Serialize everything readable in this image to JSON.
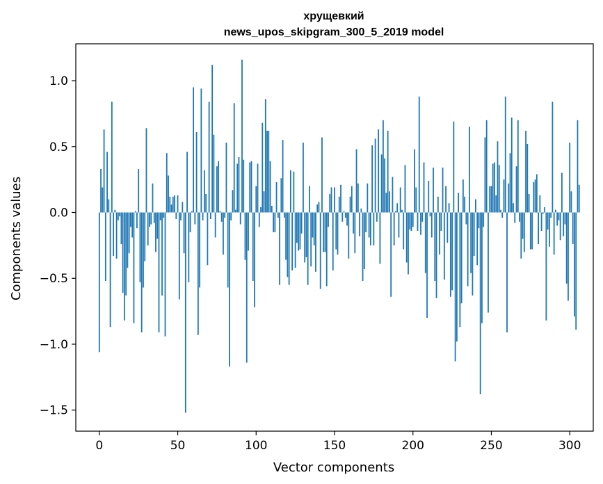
{
  "chart_data": {
    "type": "bar",
    "title_line1": "хрущевкий",
    "title_line2": "news_upos_skipgram_300_5_2019 model",
    "xlabel": "Vector components",
    "ylabel": "Components values",
    "xlim": [
      -15,
      315
    ],
    "ylim": [
      -1.66,
      1.28
    ],
    "xticks": [
      0,
      50,
      100,
      150,
      200,
      250,
      300
    ],
    "xtick_labels": [
      "0",
      "50",
      "100",
      "150",
      "200",
      "250",
      "300"
    ],
    "yticks": [
      1.0,
      0.5,
      0.0,
      -0.5,
      -1.0,
      -1.5
    ],
    "ytick_labels": [
      "1.0",
      "0.5",
      "0.0",
      "−0.5",
      "−1.0",
      "−1.5"
    ],
    "bar_color": "#1f77b4",
    "values": [
      -1.06,
      0.33,
      0.19,
      0.63,
      -0.52,
      0.46,
      0.1,
      -0.87,
      0.84,
      -0.33,
      0.02,
      -0.35,
      -0.06,
      -0.03,
      -0.24,
      -0.61,
      -0.82,
      -0.63,
      -0.42,
      -0.31,
      -0.11,
      -0.19,
      -0.84,
      0.01,
      -0.12,
      0.33,
      -0.53,
      -0.91,
      -0.57,
      -0.37,
      0.64,
      -0.25,
      -0.11,
      -0.09,
      0.22,
      -0.08,
      -0.3,
      -0.2,
      -0.91,
      -0.06,
      -0.63,
      -0.04,
      -0.94,
      0.45,
      0.28,
      0.12,
      0.06,
      0.12,
      0.13,
      -0.05,
      0.13,
      -0.66,
      -0.06,
      0.08,
      -0.31,
      -1.52,
      0.46,
      -0.53,
      -0.15,
      0.01,
      0.95,
      -0.09,
      0.61,
      -0.93,
      -0.57,
      0.94,
      -0.06,
      0.32,
      0.14,
      -0.4,
      0.84,
      -0.05,
      1.12,
      0.59,
      -0.19,
      0.35,
      0.39,
      0.01,
      -0.07,
      -0.32,
      -0.04,
      0.53,
      -0.57,
      -1.17,
      -0.06,
      0.17,
      0.83,
      0.02,
      0.37,
      0.42,
      -0.09,
      1.16,
      0.4,
      -0.36,
      -1.14,
      -0.29,
      0.38,
      0.39,
      -0.52,
      -0.72,
      0.2,
      0.37,
      -0.11,
      0.04,
      0.68,
      0.16,
      0.86,
      0.62,
      0.62,
      0.39,
      0.05,
      -0.15,
      -0.15,
      0.23,
      -0.04,
      -0.55,
      0.26,
      0.55,
      -0.04,
      -0.36,
      -0.49,
      -0.55,
      0.32,
      -0.44,
      0.31,
      -0.42,
      -0.23,
      -0.29,
      -0.28,
      -0.16,
      0.53,
      -0.38,
      -0.34,
      -0.55,
      0.2,
      -0.41,
      -0.19,
      -0.25,
      -0.45,
      0.06,
      0.08,
      -0.58,
      0.57,
      -0.3,
      -0.3,
      -0.56,
      -0.11,
      0.14,
      0.19,
      -0.44,
      0.19,
      -0.28,
      -0.32,
      0.12,
      0.21,
      -0.07,
      0.01,
      -0.04,
      -0.1,
      -0.35,
      0.12,
      0.2,
      -0.16,
      -0.31,
      0.48,
      0.22,
      -0.18,
      0.03,
      -0.52,
      -0.43,
      -0.15,
      0.22,
      -0.19,
      -0.25,
      0.51,
      -0.25,
      0.56,
      -0.07,
      0.63,
      -0.39,
      0.44,
      0.7,
      0.41,
      0.15,
      0.62,
      0.16,
      -0.64,
      0.27,
      -0.25,
      0.01,
      0.07,
      -0.19,
      0.19,
      0.02,
      -0.28,
      0.36,
      -0.38,
      -0.47,
      -0.13,
      -0.14,
      -0.11,
      0.48,
      0.19,
      -0.14,
      0.88,
      -0.17,
      -0.07,
      0.38,
      -0.46,
      -0.8,
      0.24,
      -0.03,
      -0.19,
      0.34,
      -0.52,
      -0.65,
      0.12,
      -0.32,
      -0.14,
      0.34,
      -0.51,
      0.2,
      -0.23,
      0.07,
      -0.64,
      -0.59,
      0.69,
      -1.13,
      -0.98,
      0.15,
      -0.87,
      -0.69,
      0.25,
      0.12,
      -0.09,
      -0.56,
      0.65,
      -0.46,
      -0.63,
      -0.33,
      0.1,
      -0.4,
      -0.12,
      -1.38,
      -0.84,
      -0.11,
      0.57,
      0.7,
      -0.76,
      0.2,
      0.2,
      0.37,
      0.38,
      0.13,
      0.54,
      0.36,
      0.02,
      -0.04,
      0.25,
      0.88,
      -0.91,
      0.22,
      0.45,
      0.72,
      0.07,
      -0.08,
      0.35,
      0.7,
      -0.07,
      -0.35,
      -0.2,
      -0.3,
      0.62,
      0.52,
      0.14,
      -0.28,
      -0.28,
      0.23,
      0.25,
      0.29,
      -0.24,
      0.13,
      -0.14,
      -0.01,
      0.04,
      -0.82,
      -0.13,
      -0.26,
      -0.04,
      0.84,
      -0.32,
      0.02,
      -0.1,
      -0.06,
      -0.21,
      0.3,
      -0.18,
      -0.09,
      -0.54,
      -0.67,
      0.53,
      0.16,
      -0.24,
      -0.79,
      -0.89,
      0.7,
      0.21
    ]
  }
}
